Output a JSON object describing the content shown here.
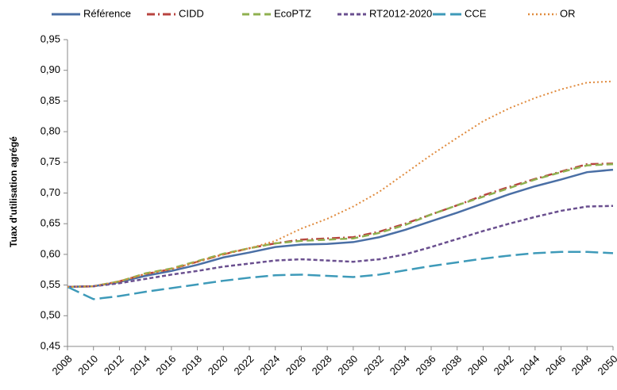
{
  "chart_data": {
    "type": "line",
    "y_label": "Tuax d'utilisation agrégé",
    "x": [
      2008,
      2010,
      2012,
      2014,
      2016,
      2018,
      2020,
      2022,
      2024,
      2026,
      2028,
      2030,
      2032,
      2034,
      2036,
      2038,
      2040,
      2042,
      2044,
      2046,
      2048,
      2050
    ],
    "series": [
      {
        "name": "Référence",
        "color": "#4a6fa5",
        "dash": "",
        "width": 2.5,
        "values": [
          0.547,
          0.548,
          0.555,
          0.565,
          0.573,
          0.583,
          0.595,
          0.603,
          0.612,
          0.616,
          0.617,
          0.62,
          0.628,
          0.64,
          0.654,
          0.668,
          0.683,
          0.698,
          0.711,
          0.722,
          0.734,
          0.738
        ]
      },
      {
        "name": "CIDD",
        "color": "#b8433f",
        "dash": "10 4 2 4",
        "width": 2.5,
        "values": [
          0.547,
          0.548,
          0.556,
          0.568,
          0.576,
          0.588,
          0.6,
          0.61,
          0.618,
          0.624,
          0.626,
          0.628,
          0.637,
          0.65,
          0.665,
          0.68,
          0.696,
          0.71,
          0.723,
          0.735,
          0.747,
          0.748
        ]
      },
      {
        "name": "EcoPTZ",
        "color": "#8fb04f",
        "dash": "9 5",
        "width": 2.5,
        "values": [
          0.547,
          0.548,
          0.556,
          0.569,
          0.577,
          0.589,
          0.601,
          0.61,
          0.618,
          0.622,
          0.624,
          0.626,
          0.635,
          0.648,
          0.665,
          0.68,
          0.694,
          0.708,
          0.722,
          0.734,
          0.745,
          0.747
        ]
      },
      {
        "name": "RT2012-2020",
        "color": "#6a4f8f",
        "dash": "5 3",
        "width": 2.5,
        "values": [
          0.547,
          0.548,
          0.553,
          0.56,
          0.567,
          0.573,
          0.58,
          0.585,
          0.59,
          0.592,
          0.59,
          0.588,
          0.592,
          0.6,
          0.612,
          0.625,
          0.638,
          0.65,
          0.661,
          0.671,
          0.678,
          0.679
        ]
      },
      {
        "name": "CCE",
        "color": "#3e9ab9",
        "dash": "16 6",
        "width": 2.5,
        "values": [
          0.547,
          0.527,
          0.532,
          0.539,
          0.545,
          0.551,
          0.557,
          0.562,
          0.566,
          0.567,
          0.565,
          0.563,
          0.567,
          0.574,
          0.581,
          0.587,
          0.593,
          0.598,
          0.602,
          0.604,
          0.604,
          0.602
        ]
      },
      {
        "name": "OR",
        "color": "#e08b3e",
        "dash": "2 3",
        "width": 2,
        "values": [
          0.547,
          0.548,
          0.556,
          0.568,
          0.576,
          0.588,
          0.6,
          0.61,
          0.622,
          0.642,
          0.658,
          0.678,
          0.702,
          0.732,
          0.762,
          0.79,
          0.817,
          0.838,
          0.855,
          0.869,
          0.88,
          0.882
        ]
      }
    ],
    "xlim": [
      2008,
      2050
    ],
    "xticks": [
      2008,
      2010,
      2012,
      2014,
      2016,
      2018,
      2020,
      2022,
      2024,
      2026,
      2028,
      2030,
      2032,
      2034,
      2036,
      2038,
      2040,
      2042,
      2044,
      2046,
      2048,
      2050
    ],
    "ylim": [
      0.45,
      0.95
    ],
    "yticks": [
      {
        "value": 0.45,
        "label": "0,45"
      },
      {
        "value": 0.5,
        "label": "0,50"
      },
      {
        "value": 0.55,
        "label": "0,55"
      },
      {
        "value": 0.6,
        "label": "0,60"
      },
      {
        "value": 0.65,
        "label": "0,65"
      },
      {
        "value": 0.7,
        "label": "0,70"
      },
      {
        "value": 0.75,
        "label": "0,75"
      },
      {
        "value": 0.8,
        "label": "0,80"
      },
      {
        "value": 0.85,
        "label": "0,85"
      },
      {
        "value": 0.9,
        "label": "0,90"
      },
      {
        "value": 0.95,
        "label": "0,95"
      }
    ],
    "legend": "top"
  }
}
